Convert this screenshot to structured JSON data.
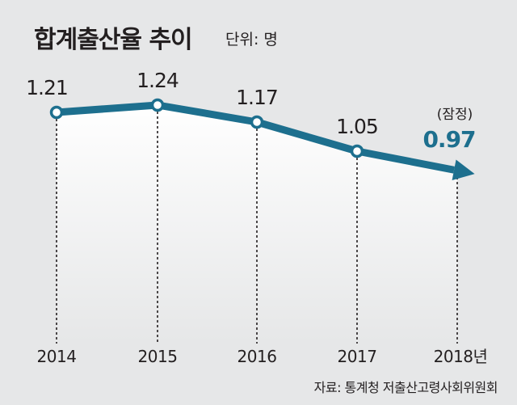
{
  "header": {
    "title": "합계출산율 추이",
    "unit": "단위: 명"
  },
  "source": "자료: 통계청 저출산고령사회위원회",
  "estimate_note": "(잠정)",
  "colors": {
    "line": "#1d6f8e",
    "highlight": "#1d6f8e",
    "text": "#231f20",
    "background": "#e6e7e8",
    "band": "#ffffff"
  },
  "chart_data": {
    "type": "line",
    "categories": [
      "2014",
      "2015",
      "2016",
      "2017",
      "2018년"
    ],
    "values": [
      1.21,
      1.24,
      1.17,
      1.05,
      0.97
    ],
    "labels": [
      "1.21",
      "1.24",
      "1.17",
      "1.05",
      "0.97"
    ],
    "title": "합계출산율 추이",
    "ylabel": "단위: 명",
    "ylim": [
      0.75,
      1.5
    ],
    "last_point_marker": "arrow",
    "last_point_annotation": "(잠정)"
  }
}
